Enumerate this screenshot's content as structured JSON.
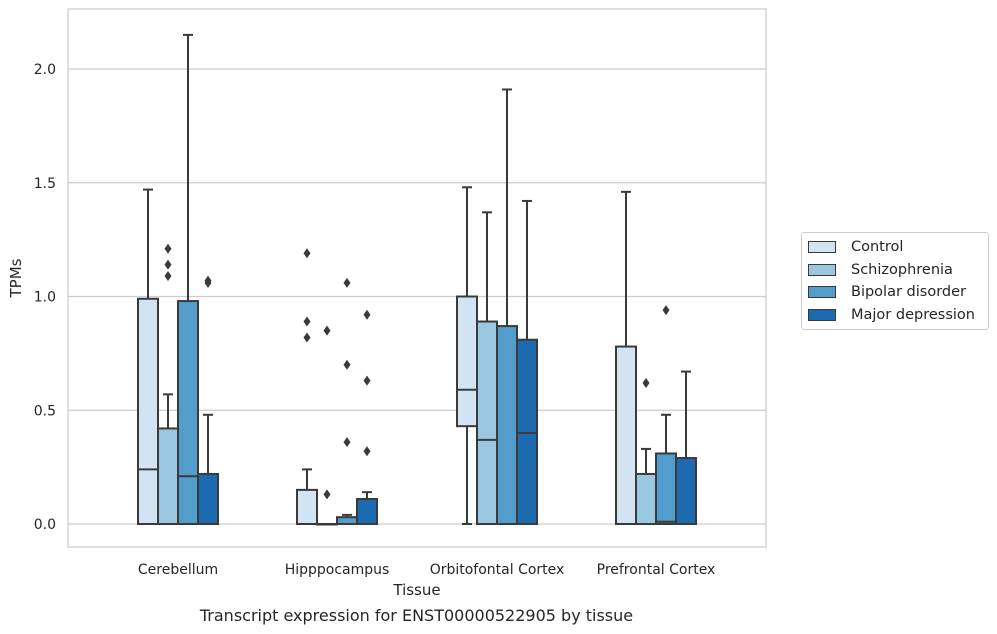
{
  "caption": "Transcript expression for ENST00000522905 by tissue",
  "chart_data": {
    "type": "box",
    "title": "",
    "xlabel": "Tissue",
    "ylabel": "TPMs",
    "ylim": [
      -0.1,
      2.27
    ],
    "yticks": [
      0.0,
      0.5,
      1.0,
      1.5,
      2.0
    ],
    "ytick_labels": [
      "0.0",
      "0.5",
      "1.0",
      "1.5",
      "2.0"
    ],
    "grid": "horizontal",
    "legend_position": "right",
    "categories": [
      "Cerebellum",
      "Hipppocampus",
      "Orbitofontal Cortex",
      "Prefrontal Cortex"
    ],
    "series": [
      {
        "name": "Control",
        "color": "#d2e3f3",
        "boxes": [
          {
            "whisker_low": 0.0,
            "q1": 0.0,
            "median": 0.24,
            "q3": 0.99,
            "whisker_high": 1.47,
            "outliers": []
          },
          {
            "whisker_low": 0.0,
            "q1": 0.0,
            "median": 0.0,
            "q3": 0.15,
            "whisker_high": 0.24,
            "outliers": [
              0.82,
              0.89,
              1.19
            ]
          },
          {
            "whisker_low": 0.0,
            "q1": 0.43,
            "median": 0.59,
            "q3": 1.0,
            "whisker_high": 1.48,
            "outliers": []
          },
          {
            "whisker_low": 0.0,
            "q1": 0.0,
            "median": 0.0,
            "q3": 0.78,
            "whisker_high": 1.46,
            "outliers": []
          }
        ]
      },
      {
        "name": "Schizophrenia",
        "color": "#9ac8e0",
        "boxes": [
          {
            "whisker_low": 0.0,
            "q1": 0.0,
            "median": 0.0,
            "q3": 0.42,
            "whisker_high": 0.57,
            "outliers": [
              1.09,
              1.14,
              1.21
            ]
          },
          {
            "whisker_low": 0.0,
            "q1": 0.0,
            "median": 0.0,
            "q3": 0.0,
            "whisker_high": 0.0,
            "outliers": [
              0.13,
              0.85
            ]
          },
          {
            "whisker_low": 0.0,
            "q1": 0.0,
            "median": 0.37,
            "q3": 0.89,
            "whisker_high": 1.37,
            "outliers": []
          },
          {
            "whisker_low": 0.0,
            "q1": 0.0,
            "median": 0.0,
            "q3": 0.22,
            "whisker_high": 0.33,
            "outliers": [
              0.62
            ]
          }
        ]
      },
      {
        "name": "Bipolar disorder",
        "color": "#529dcc",
        "boxes": [
          {
            "whisker_low": 0.0,
            "q1": 0.0,
            "median": 0.21,
            "q3": 0.98,
            "whisker_high": 2.15,
            "outliers": []
          },
          {
            "whisker_low": 0.0,
            "q1": 0.0,
            "median": 0.0,
            "q3": 0.03,
            "whisker_high": 0.04,
            "outliers": [
              0.36,
              0.7,
              1.06
            ]
          },
          {
            "whisker_low": 0.0,
            "q1": 0.0,
            "median": 0.0,
            "q3": 0.87,
            "whisker_high": 1.91,
            "outliers": []
          },
          {
            "whisker_low": 0.0,
            "q1": 0.0,
            "median": 0.01,
            "q3": 0.31,
            "whisker_high": 0.48,
            "outliers": [
              0.94
            ]
          }
        ]
      },
      {
        "name": "Major depression",
        "color": "#1c6aaf",
        "boxes": [
          {
            "whisker_low": 0.0,
            "q1": 0.0,
            "median": 0.0,
            "q3": 0.22,
            "whisker_high": 0.48,
            "outliers": [
              1.06,
              1.07
            ]
          },
          {
            "whisker_low": 0.0,
            "q1": 0.0,
            "median": 0.0,
            "q3": 0.11,
            "whisker_high": 0.14,
            "outliers": [
              0.32,
              0.63,
              0.92
            ]
          },
          {
            "whisker_low": 0.0,
            "q1": 0.0,
            "median": 0.4,
            "q3": 0.81,
            "whisker_high": 1.42,
            "outliers": []
          },
          {
            "whisker_low": 0.0,
            "q1": 0.0,
            "median": 0.0,
            "q3": 0.29,
            "whisker_high": 0.67,
            "outliers": []
          }
        ]
      }
    ]
  }
}
